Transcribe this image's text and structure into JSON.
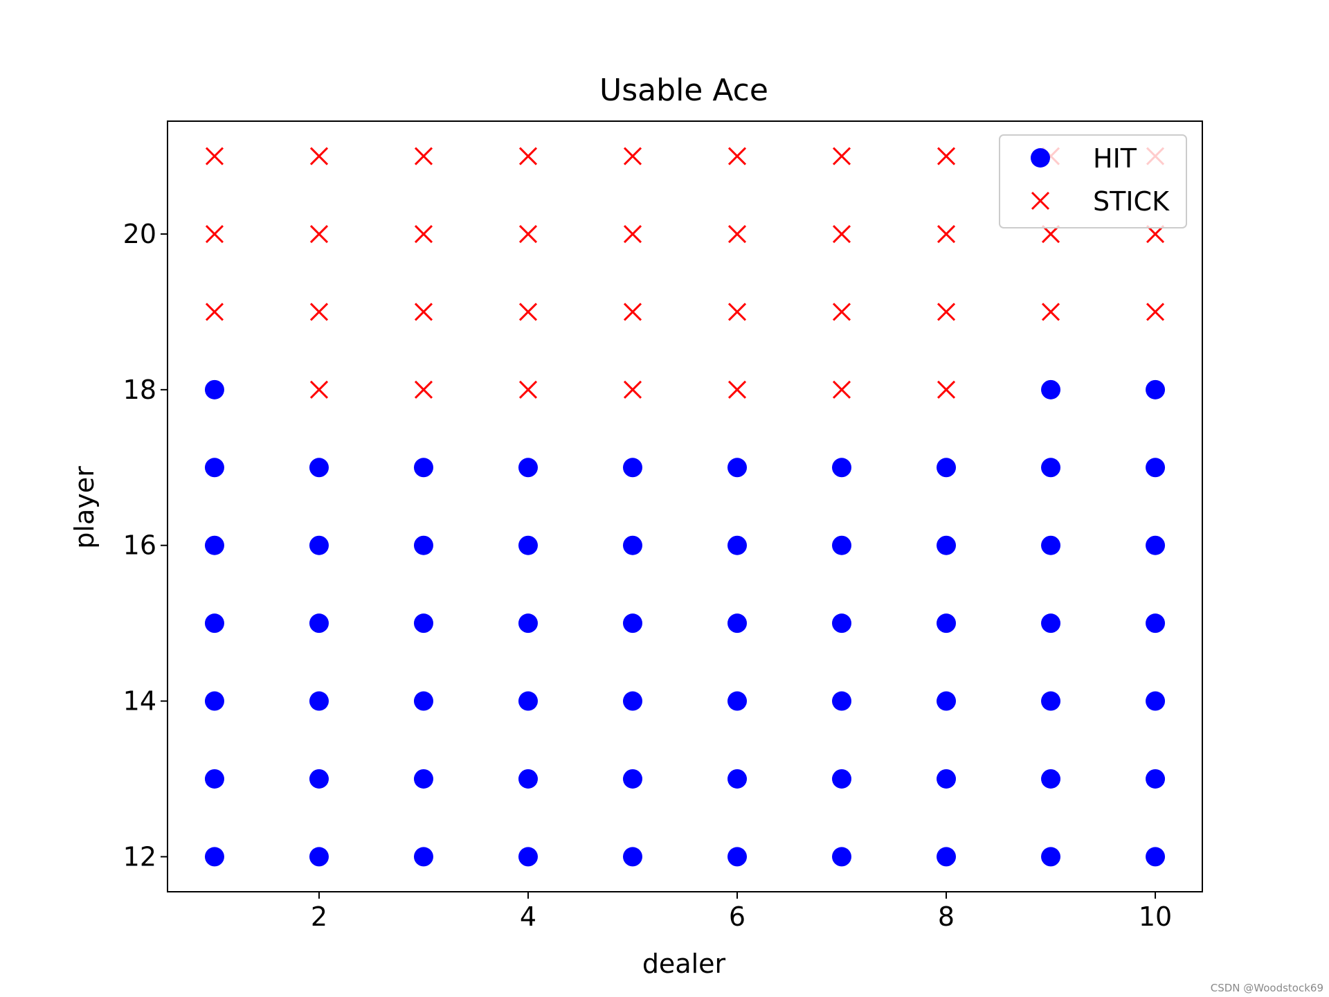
{
  "chart_data": {
    "type": "scatter",
    "title": "Usable Ace",
    "xlabel": "dealer",
    "ylabel": "player",
    "xlim": [
      0.55,
      10.45
    ],
    "ylim": [
      11.55,
      21.45
    ],
    "xticks": [
      2,
      4,
      6,
      8,
      10
    ],
    "yticks": [
      12,
      14,
      16,
      18,
      20
    ],
    "grid": false,
    "legend_position": "top-right",
    "series": [
      {
        "name": "HIT",
        "marker": "circle",
        "color": "#0000ff",
        "points": [
          [
            1,
            12
          ],
          [
            2,
            12
          ],
          [
            3,
            12
          ],
          [
            4,
            12
          ],
          [
            5,
            12
          ],
          [
            6,
            12
          ],
          [
            7,
            12
          ],
          [
            8,
            12
          ],
          [
            9,
            12
          ],
          [
            10,
            12
          ],
          [
            1,
            13
          ],
          [
            2,
            13
          ],
          [
            3,
            13
          ],
          [
            4,
            13
          ],
          [
            5,
            13
          ],
          [
            6,
            13
          ],
          [
            7,
            13
          ],
          [
            8,
            13
          ],
          [
            9,
            13
          ],
          [
            10,
            13
          ],
          [
            1,
            14
          ],
          [
            2,
            14
          ],
          [
            3,
            14
          ],
          [
            4,
            14
          ],
          [
            5,
            14
          ],
          [
            6,
            14
          ],
          [
            7,
            14
          ],
          [
            8,
            14
          ],
          [
            9,
            14
          ],
          [
            10,
            14
          ],
          [
            1,
            15
          ],
          [
            2,
            15
          ],
          [
            3,
            15
          ],
          [
            4,
            15
          ],
          [
            5,
            15
          ],
          [
            6,
            15
          ],
          [
            7,
            15
          ],
          [
            8,
            15
          ],
          [
            9,
            15
          ],
          [
            10,
            15
          ],
          [
            1,
            16
          ],
          [
            2,
            16
          ],
          [
            3,
            16
          ],
          [
            4,
            16
          ],
          [
            5,
            16
          ],
          [
            6,
            16
          ],
          [
            7,
            16
          ],
          [
            8,
            16
          ],
          [
            9,
            16
          ],
          [
            10,
            16
          ],
          [
            1,
            17
          ],
          [
            2,
            17
          ],
          [
            3,
            17
          ],
          [
            4,
            17
          ],
          [
            5,
            17
          ],
          [
            6,
            17
          ],
          [
            7,
            17
          ],
          [
            8,
            17
          ],
          [
            9,
            17
          ],
          [
            10,
            17
          ],
          [
            1,
            18
          ],
          [
            9,
            18
          ],
          [
            10,
            18
          ]
        ]
      },
      {
        "name": "STICK",
        "marker": "x",
        "color": "#ff0000",
        "points": [
          [
            2,
            18
          ],
          [
            3,
            18
          ],
          [
            4,
            18
          ],
          [
            5,
            18
          ],
          [
            6,
            18
          ],
          [
            7,
            18
          ],
          [
            8,
            18
          ],
          [
            1,
            19
          ],
          [
            2,
            19
          ],
          [
            3,
            19
          ],
          [
            4,
            19
          ],
          [
            5,
            19
          ],
          [
            6,
            19
          ],
          [
            7,
            19
          ],
          [
            8,
            19
          ],
          [
            9,
            19
          ],
          [
            10,
            19
          ],
          [
            1,
            20
          ],
          [
            2,
            20
          ],
          [
            3,
            20
          ],
          [
            4,
            20
          ],
          [
            5,
            20
          ],
          [
            6,
            20
          ],
          [
            7,
            20
          ],
          [
            8,
            20
          ],
          [
            9,
            20
          ],
          [
            10,
            20
          ],
          [
            1,
            21
          ],
          [
            2,
            21
          ],
          [
            3,
            21
          ],
          [
            4,
            21
          ],
          [
            5,
            21
          ],
          [
            6,
            21
          ],
          [
            7,
            21
          ],
          [
            8,
            21
          ],
          [
            9,
            21
          ],
          [
            10,
            21
          ]
        ]
      }
    ]
  },
  "watermark": "CSDN @Woodstock69"
}
